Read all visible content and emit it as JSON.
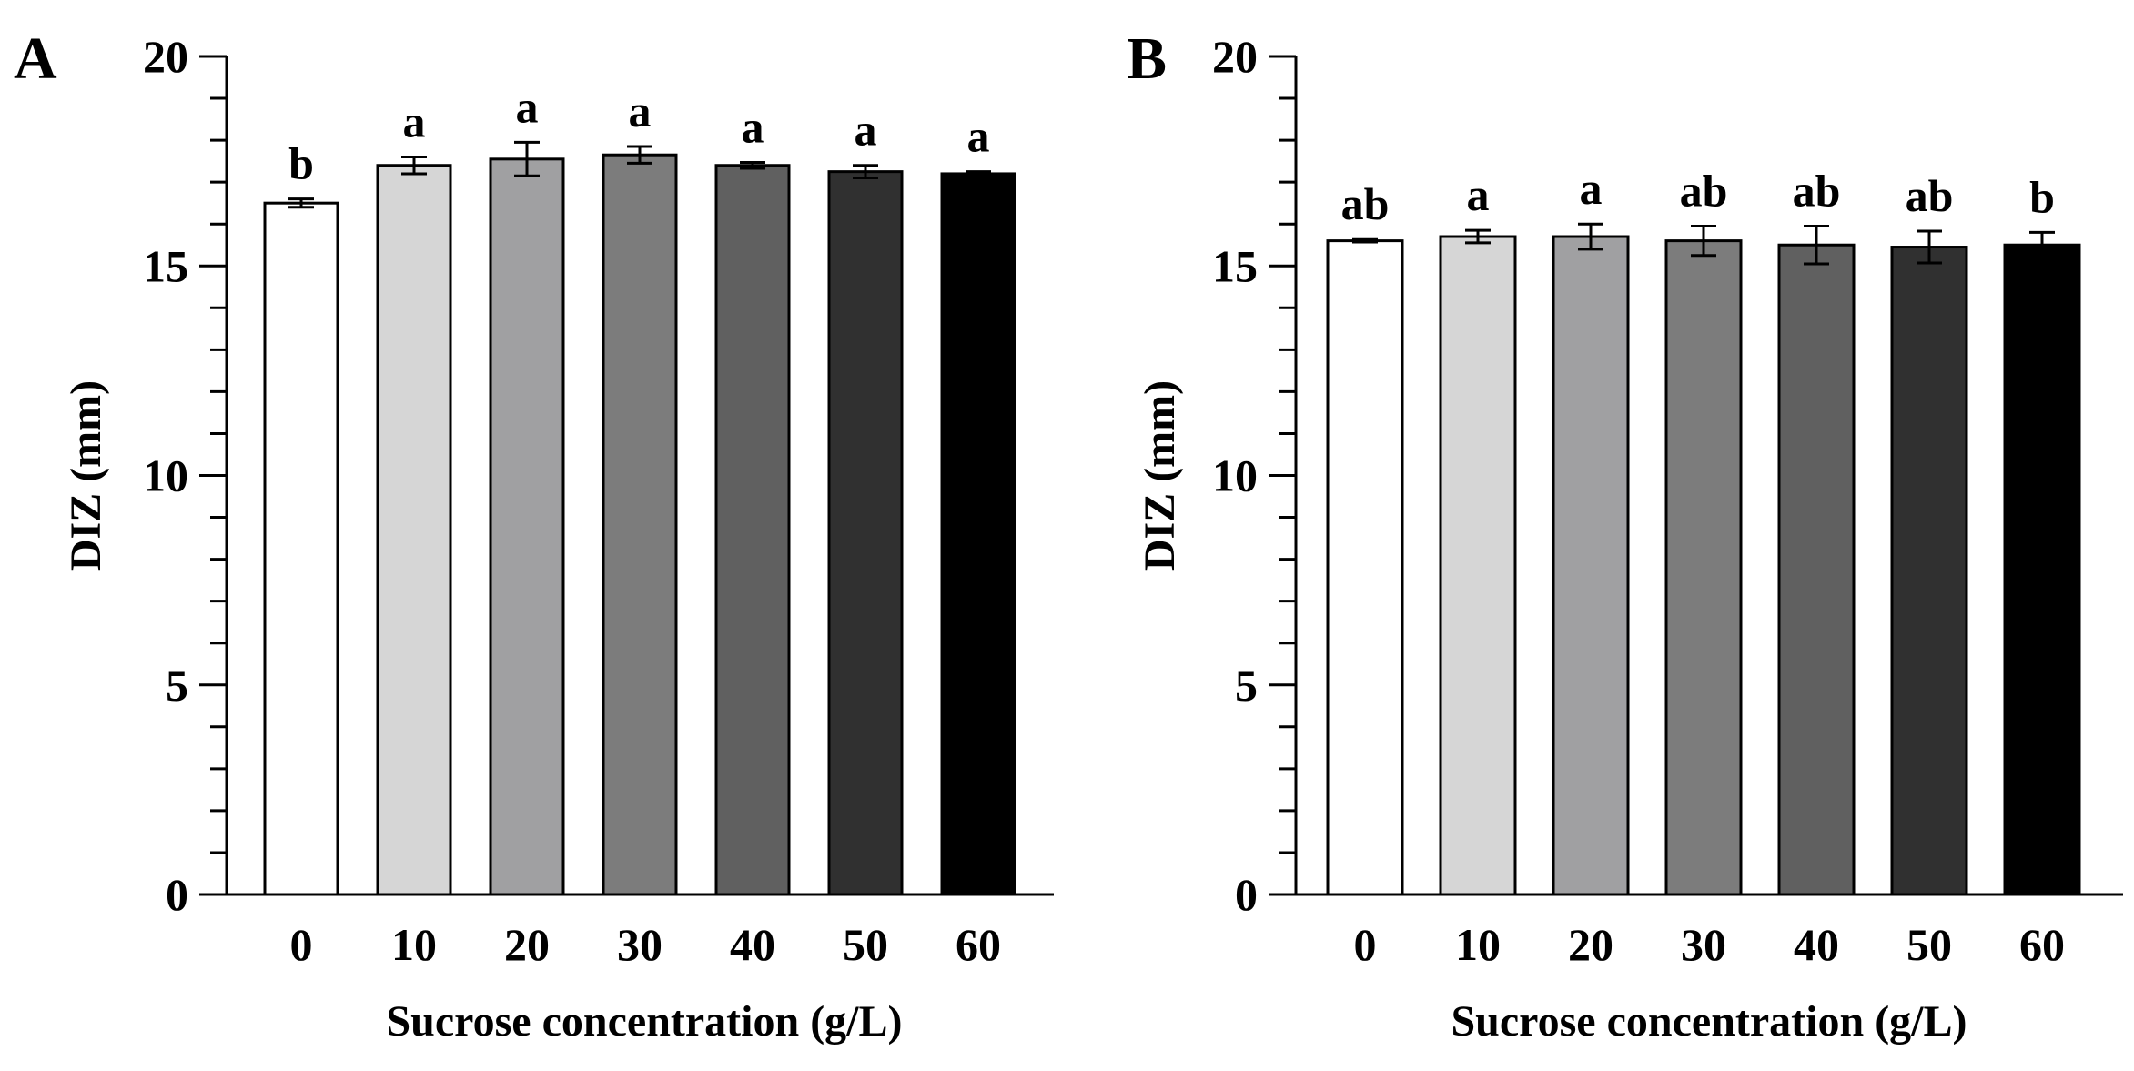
{
  "chart_data": [
    {
      "type": "bar",
      "panel_label": "A",
      "xlabel": "Sucrose concentration (g/L)",
      "ylabel": "DIZ (mm)",
      "ylim": [
        0,
        20
      ],
      "yticks": [
        "0",
        "5",
        "10",
        "15",
        "20"
      ],
      "categories": [
        "0",
        "10",
        "20",
        "30",
        "40",
        "50",
        "60"
      ],
      "values": [
        16.5,
        17.4,
        17.55,
        17.65,
        17.4,
        17.25,
        17.2
      ],
      "errors": [
        0.1,
        0.2,
        0.4,
        0.2,
        0.07,
        0.15,
        0.05
      ],
      "significance": [
        "b",
        "a",
        "a",
        "a",
        "a",
        "a",
        "a"
      ],
      "bar_colors": [
        "#ffffff",
        "#d6d6d6",
        "#a0a0a2",
        "#7c7c7c",
        "#606060",
        "#303030",
        "#000000"
      ]
    },
    {
      "type": "bar",
      "panel_label": "B",
      "xlabel": "Sucrose concentration (g/L)",
      "ylabel": "DIZ (mm)",
      "ylim": [
        0,
        20
      ],
      "yticks": [
        "0",
        "5",
        "10",
        "15",
        "20"
      ],
      "categories": [
        "0",
        "10",
        "20",
        "30",
        "40",
        "50",
        "60"
      ],
      "values": [
        15.6,
        15.7,
        15.7,
        15.6,
        15.5,
        15.45,
        15.5
      ],
      "errors": [
        0.03,
        0.15,
        0.3,
        0.35,
        0.45,
        0.38,
        0.3
      ],
      "significance": [
        "ab",
        "a",
        "a",
        "ab",
        "ab",
        "ab",
        "b"
      ],
      "bar_colors": [
        "#ffffff",
        "#d6d6d6",
        "#a0a0a2",
        "#7c7c7c",
        "#606060",
        "#303030",
        "#000000"
      ]
    }
  ]
}
